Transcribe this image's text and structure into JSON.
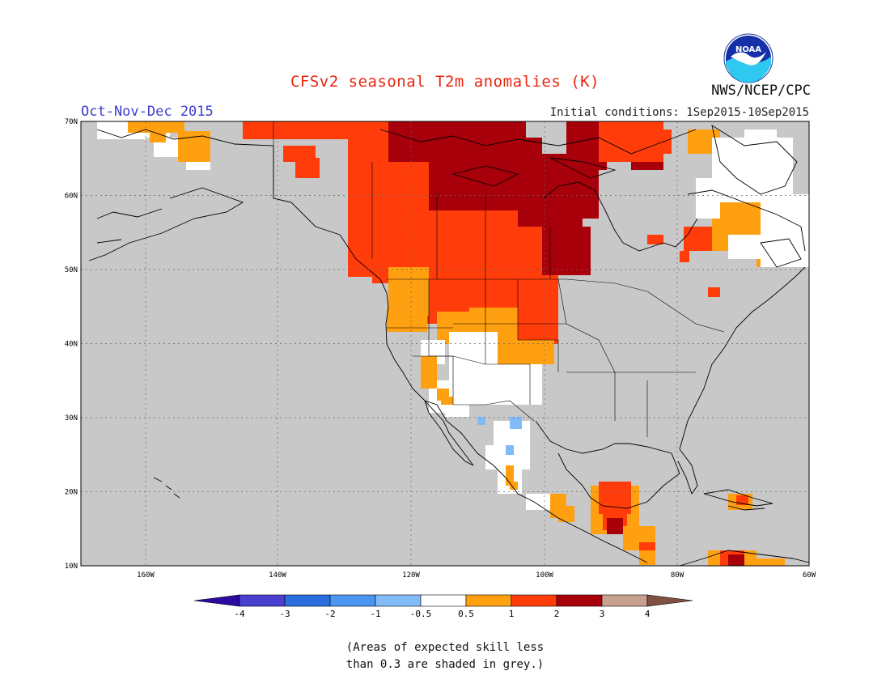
{
  "title": "CFSv2 seasonal T2m anomalies (K)",
  "organization": "NWS/NCEP/CPC",
  "logo_text": "NOAA",
  "period": "Oct-Nov-Dec 2015",
  "initial_conditions": "Initial conditions: 1Sep2015-10Sep2015",
  "note_line1": "(Areas of expected skill less",
  "note_line2": "than 0.3 are shaded in grey.)",
  "colors": {
    "title": "#e8240c",
    "period": "#3c3cd0",
    "land_grey": "#c8c8c8",
    "ocean_grey": "#c8c8c8"
  },
  "map": {
    "lon_ticks": [
      "160W",
      "140W",
      "120W",
      "100W",
      "80W",
      "60W"
    ],
    "lat_ticks": [
      "70N",
      "60N",
      "50N",
      "40N",
      "30N",
      "20N",
      "10N"
    ]
  },
  "colorbar": {
    "labels": [
      "-4",
      "-3",
      "-2",
      "-1",
      "-0.5",
      "0.5",
      "1",
      "2",
      "3",
      "4"
    ],
    "colors": [
      "#2a0aa0",
      "#4a40d0",
      "#2a6ee0",
      "#4a96f0",
      "#82bcf8",
      "#ffffff",
      "#ffa010",
      "#ff3c0a",
      "#a8000a",
      "#c8a090",
      "#805040"
    ]
  },
  "legend_map_colors": {
    "white": "#ffffff",
    "orange": "#ffa010",
    "red": "#ff3c0a",
    "darkred": "#a8000a",
    "lightblue": "#82bcf8"
  }
}
